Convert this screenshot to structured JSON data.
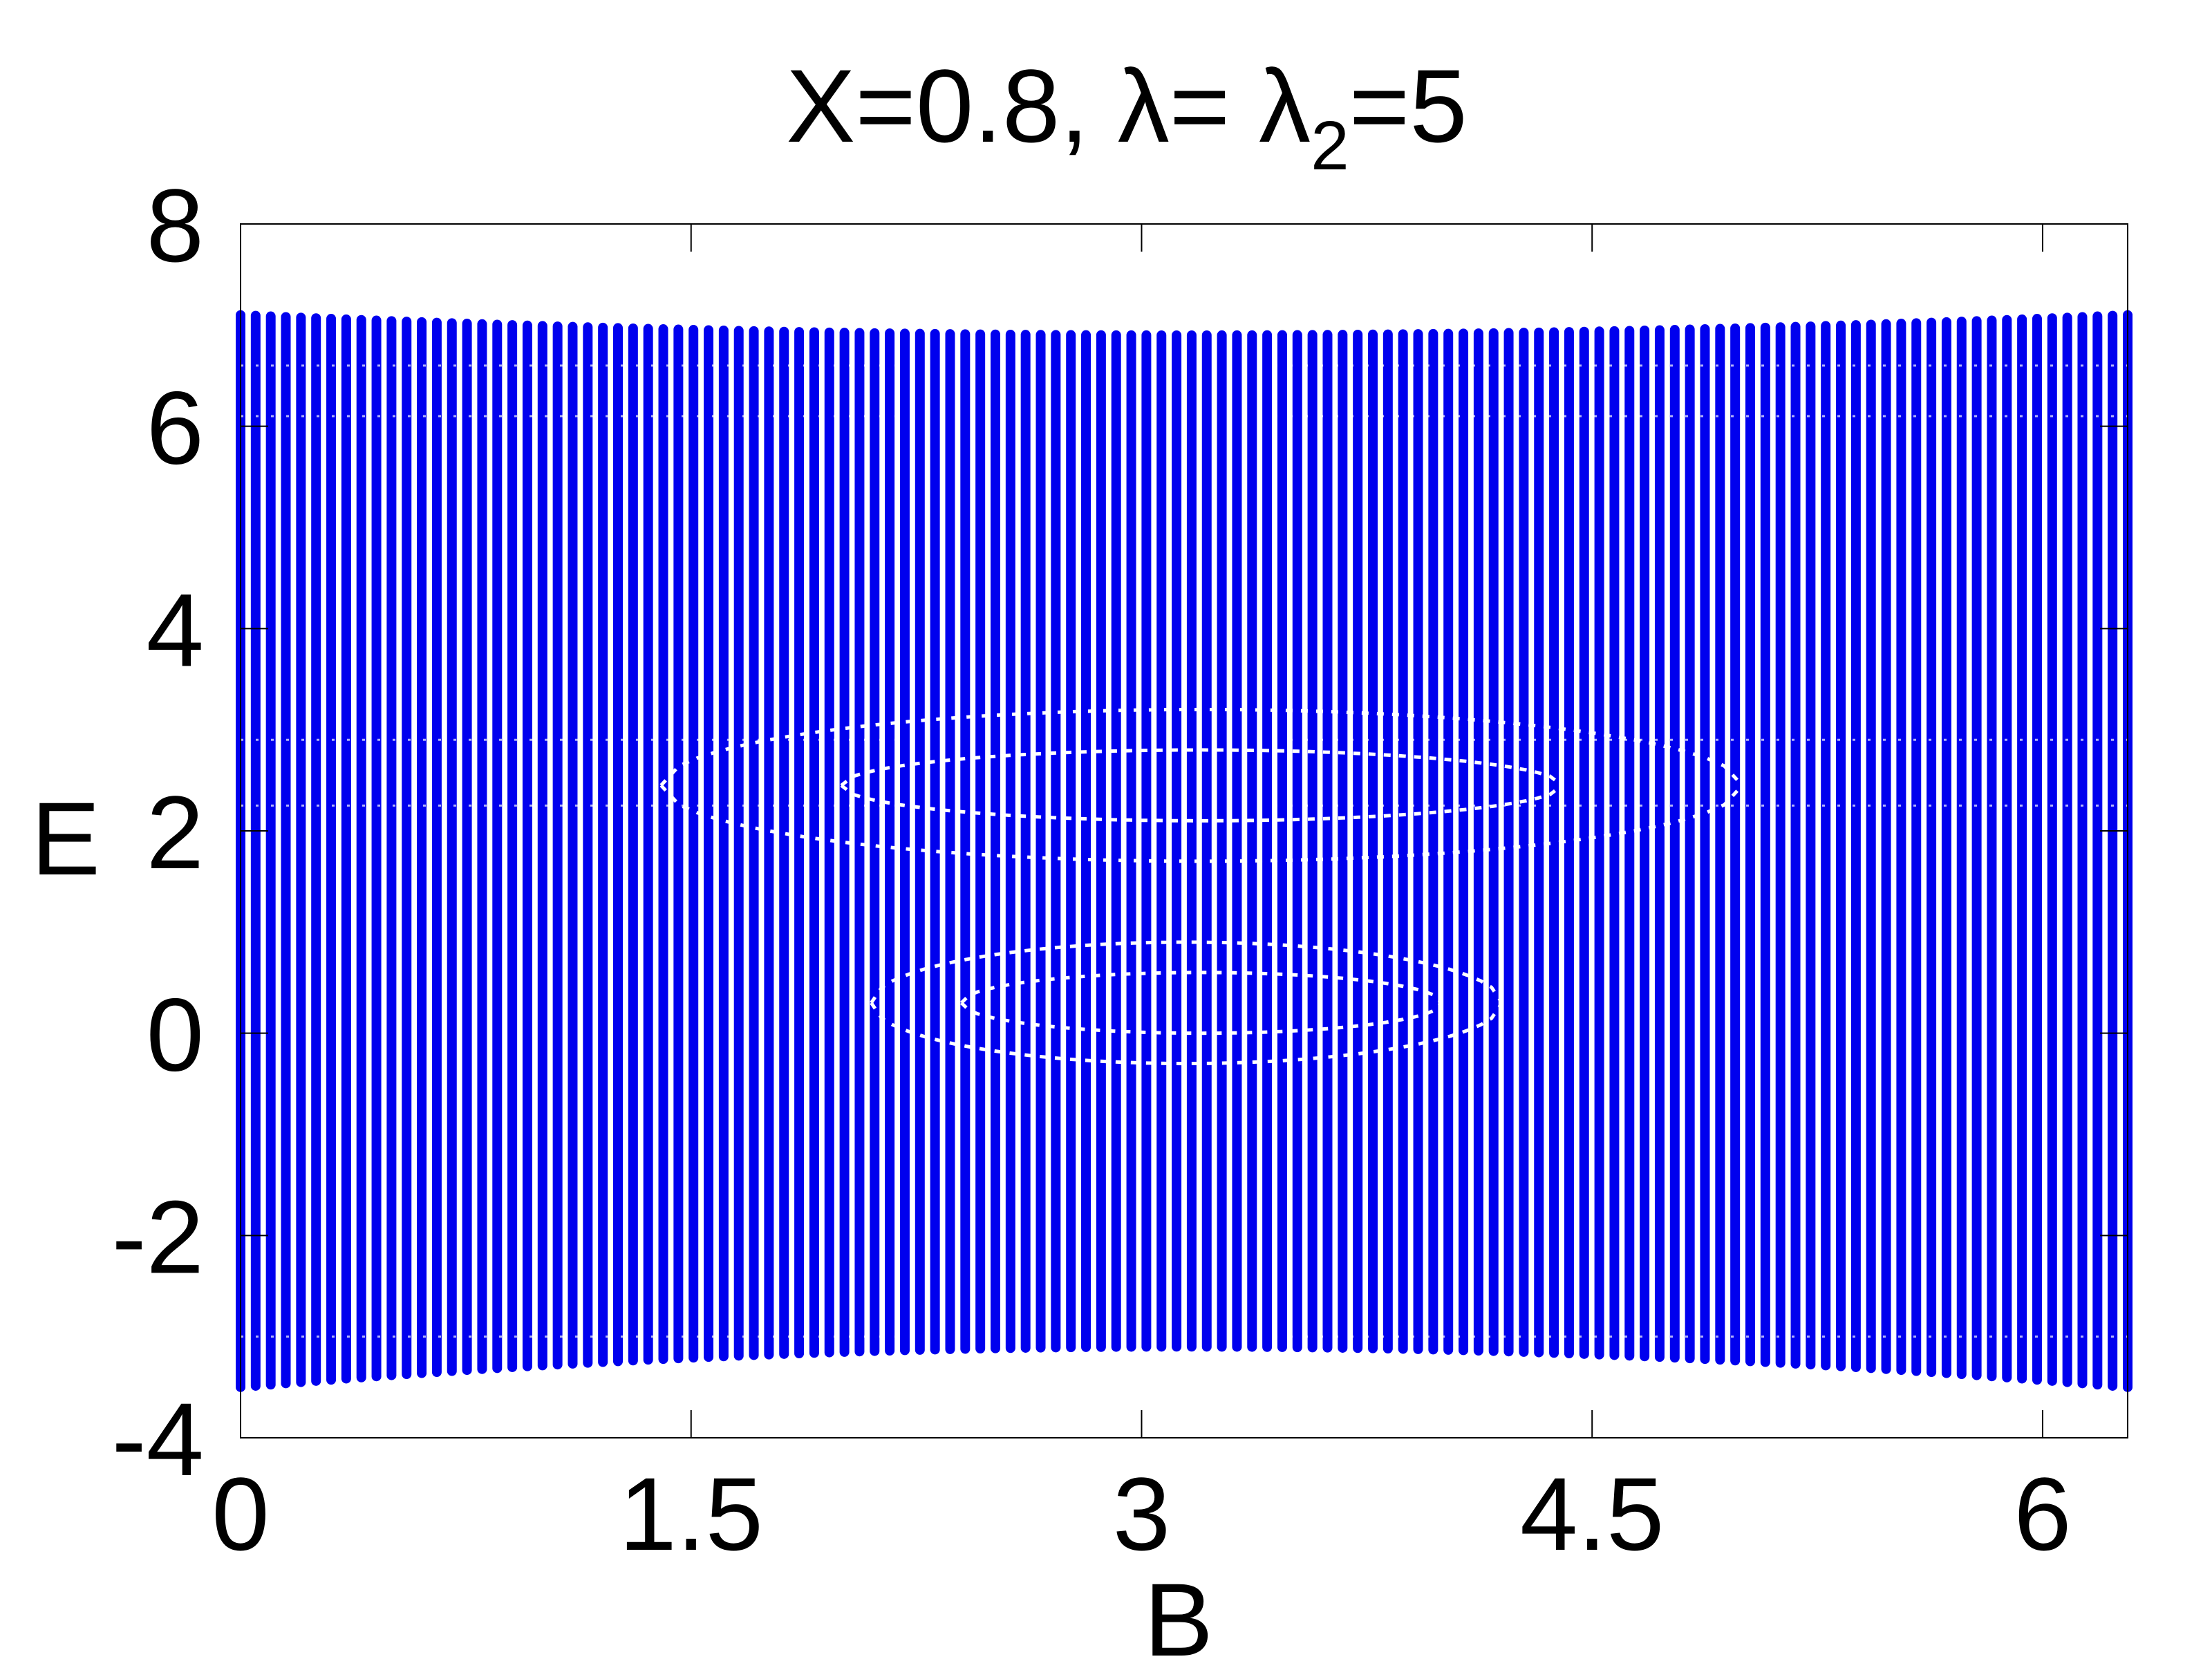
{
  "chart_data": {
    "type": "scatter",
    "title": {
      "prefix": "X=0.8, λ= λ",
      "subscript": "2",
      "suffix": "=5"
    },
    "xlabel": "B",
    "ylabel": "E",
    "xlim": [
      0,
      6.2832
    ],
    "ylim": [
      -4,
      8
    ],
    "xticks": [
      {
        "value": 0,
        "label": "0"
      },
      {
        "value": 1.5,
        "label": "1.5"
      },
      {
        "value": 3,
        "label": "3"
      },
      {
        "value": 4.5,
        "label": "4.5"
      },
      {
        "value": 6,
        "label": "6"
      }
    ],
    "yticks": [
      {
        "value": -4,
        "label": "-4"
      },
      {
        "value": -2,
        "label": "-2"
      },
      {
        "value": 0,
        "label": "0"
      },
      {
        "value": 2,
        "label": "2"
      },
      {
        "value": 4,
        "label": "4"
      },
      {
        "value": 6,
        "label": "6"
      },
      {
        "value": 8,
        "label": "8"
      }
    ],
    "grid": false,
    "legend": "none",
    "series": [
      {
        "marker_color": "#0000ee",
        "samples": 126,
        "upper_edge": {
          "at_ends": 7.1,
          "at_center": 6.9
        },
        "lower_edge": {
          "at_ends": -3.5,
          "at_center": -3.1
        },
        "gap_curves": [
          {
            "center": 2.45,
            "half_height": 0.75,
            "x_from": 1.4,
            "x_to": 5.0
          },
          {
            "center": 2.45,
            "half_height": 0.35,
            "x_from": 2.0,
            "x_to": 4.4
          },
          {
            "center": 0.3,
            "half_height": 0.3,
            "x_from": 2.4,
            "x_to": 4.0
          },
          {
            "center": 0.3,
            "half_height": 0.6,
            "x_from": 2.1,
            "x_to": 4.2
          }
        ]
      }
    ]
  }
}
